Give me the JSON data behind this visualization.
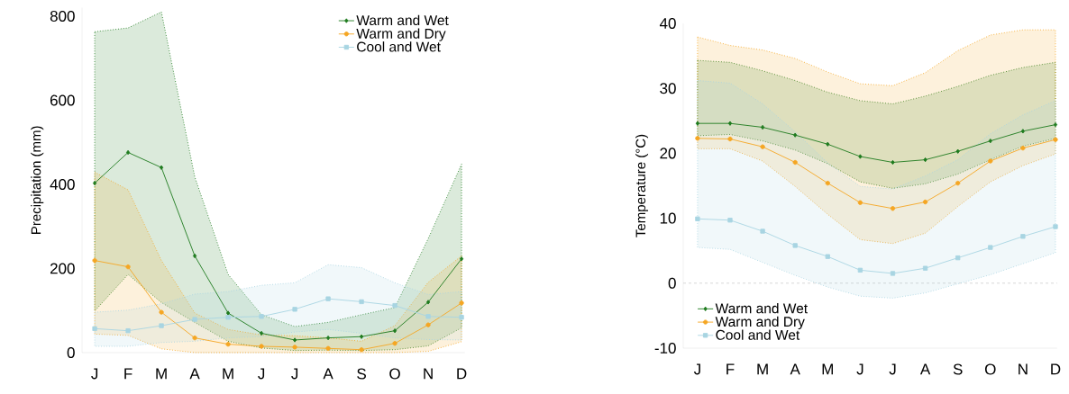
{
  "chart_data": [
    {
      "type": "line",
      "ylabel": "Precipitation (mm)",
      "categories": [
        "J",
        "F",
        "M",
        "A",
        "M",
        "J",
        "J",
        "A",
        "S",
        "O",
        "N",
        "D"
      ],
      "ylim": [
        0,
        820
      ],
      "yticks": [
        0,
        200,
        400,
        600,
        800
      ],
      "legend": "top right",
      "series": [
        {
          "name": "Warm and Wet",
          "color": "#1e7b1e",
          "marker": "diamond",
          "values": [
            403,
            476,
            440,
            230,
            94,
            46,
            30,
            35,
            38,
            52,
            120,
            223
          ],
          "upper": [
            763,
            772,
            810,
            418,
            186,
            90,
            62,
            72,
            90,
            107,
            271,
            448
          ],
          "lower": [
            99,
            186,
            119,
            72,
            27,
            11,
            5,
            6,
            5,
            7,
            16,
            59
          ]
        },
        {
          "name": "Warm and Dry",
          "color": "#f5a623",
          "marker": "circle",
          "values": [
            219,
            204,
            96,
            35,
            20,
            15,
            13,
            10,
            7,
            22,
            66,
            118
          ],
          "upper": [
            429,
            387,
            219,
            94,
            55,
            42,
            40,
            35,
            27,
            64,
            167,
            230
          ],
          "lower": [
            44,
            41,
            9,
            0,
            0,
            0,
            0,
            0,
            0,
            0,
            3,
            26
          ]
        },
        {
          "name": "Cool and Wet",
          "color": "#a8d5e2",
          "marker": "square",
          "values": [
            57,
            52,
            64,
            79,
            84,
            86,
            103,
            128,
            121,
            112,
            86,
            84
          ],
          "upper": [
            96,
            101,
            116,
            139,
            145,
            160,
            166,
            209,
            202,
            166,
            138,
            145
          ],
          "lower": [
            15,
            15,
            24,
            27,
            35,
            38,
            49,
            55,
            46,
            35,
            31,
            30
          ]
        }
      ]
    },
    {
      "type": "line",
      "ylabel": "Temperature (°C)",
      "categories": [
        "J",
        "F",
        "M",
        "A",
        "M",
        "J",
        "J",
        "A",
        "S",
        "O",
        "N",
        "D"
      ],
      "ylim": [
        -10,
        40
      ],
      "yticks": [
        -10,
        0,
        10,
        20,
        30,
        40
      ],
      "legend": "bottom left",
      "ref_lines": [
        {
          "axis": "y",
          "value": 0,
          "color": "#cccccc",
          "line_style": "dashed"
        }
      ],
      "series": [
        {
          "name": "Warm and Wet",
          "color": "#1e7b1e",
          "marker": "diamond",
          "values": [
            24.6,
            24.6,
            24.0,
            22.8,
            21.4,
            19.5,
            18.6,
            19.0,
            20.3,
            21.9,
            23.4,
            24.4
          ],
          "upper": [
            34.3,
            34.0,
            32.7,
            31.2,
            29.4,
            28.1,
            27.6,
            28.8,
            30.3,
            32.0,
            33.2,
            34.0
          ],
          "lower": [
            22.7,
            22.9,
            21.9,
            20.5,
            18.4,
            15.6,
            14.6,
            15.3,
            16.8,
            19.0,
            21.1,
            22.3
          ]
        },
        {
          "name": "Warm and Dry",
          "color": "#f5a623",
          "marker": "circle",
          "values": [
            22.3,
            22.2,
            21.0,
            18.6,
            15.4,
            12.4,
            11.5,
            12.5,
            15.4,
            18.8,
            20.8,
            22.1
          ],
          "upper": [
            37.9,
            36.6,
            35.9,
            34.6,
            32.5,
            30.7,
            30.4,
            32.4,
            35.8,
            38.2,
            39.0,
            39.0
          ],
          "lower": [
            20.7,
            20.7,
            18.8,
            14.9,
            10.6,
            6.7,
            6.1,
            7.7,
            11.8,
            15.6,
            18.1,
            19.9
          ]
        },
        {
          "name": "Cool and Wet",
          "color": "#a8d5e2",
          "marker": "square",
          "values": [
            9.9,
            9.7,
            8.0,
            5.8,
            4.1,
            2.0,
            1.5,
            2.3,
            3.9,
            5.5,
            7.2,
            8.7
          ],
          "upper": [
            31.2,
            30.8,
            27.6,
            23.3,
            18.5,
            14.9,
            14.5,
            16.5,
            19.0,
            23.0,
            25.9,
            28.1
          ],
          "lower": [
            5.5,
            5.2,
            3.2,
            1.2,
            -0.6,
            -2.0,
            -2.3,
            -1.5,
            -0.1,
            1.3,
            3.0,
            4.7
          ]
        }
      ]
    }
  ]
}
